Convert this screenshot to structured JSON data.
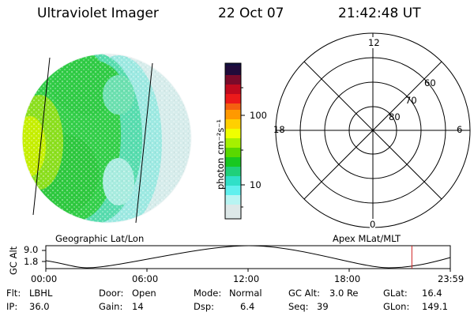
{
  "header": {
    "title": "Ultraviolet Imager",
    "date": "22 Oct 07",
    "time": "21:42:48 UT"
  },
  "colorbar": {
    "unit_label": "photon cm⁻²s⁻¹",
    "tick_100": "100",
    "tick_10": "10"
  },
  "polar_grid": {
    "mlt_top": "12",
    "mlt_left": "18",
    "mlt_right": "6",
    "mlt_bottom": "0",
    "lat_60": "60",
    "lat_70": "70",
    "lat_80": "80"
  },
  "map_labels": {
    "left": "Geographic Lat/Lon",
    "right": "Apex MLat/MLT"
  },
  "altitude_plot": {
    "ylabel": "GC Alt",
    "y_max": "9.0",
    "y_min": "1.8",
    "x_ticks": [
      "00:00",
      "06:00",
      "12:00",
      "18:00",
      "23:59"
    ],
    "current_time_fraction": 0.905
  },
  "info": {
    "flt_label": "Flt:",
    "flt_value": "LBHL",
    "door_label": "Door:",
    "door_value": "Open",
    "mode_label": "Mode:",
    "mode_value": "Normal",
    "gcalt_label": "GC Alt:",
    "gcalt_value": "3.0 Re",
    "glat_label": "GLat:",
    "glat_value": "16.4",
    "ip_label": "IP:",
    "ip_value": "36.0",
    "gain_label": "Gain:",
    "gain_value": "14",
    "dsp_label": "Dsp:",
    "dsp_value": "6.4",
    "seq_label": "Seq:",
    "seq_value": "39",
    "glon_label": "GLon:",
    "glon_value": "149.1"
  },
  "colors": {
    "bright_limb": "#c8f000",
    "aurora_green": "#2ecc2e",
    "dim_cyan": "#8ae8e6",
    "night_gray": "#dfe8e8",
    "marker": "#d02020"
  }
}
